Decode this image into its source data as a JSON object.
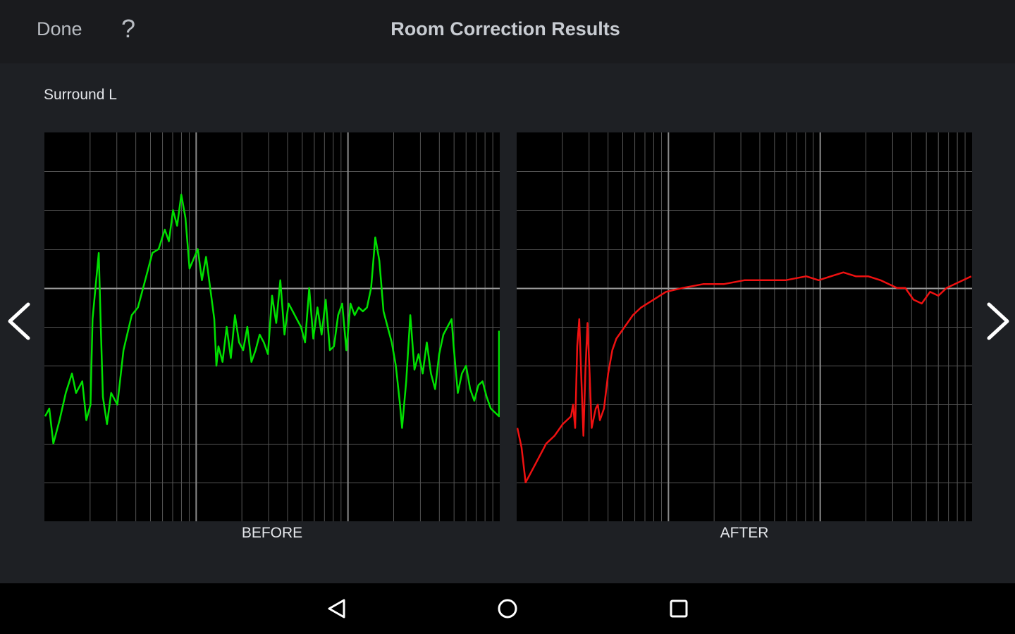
{
  "header": {
    "done_label": "Done",
    "help_label": "?",
    "title": "Room Correction Results"
  },
  "channel": "Surround L",
  "icons": {
    "prev": "chevron-left-icon",
    "next": "chevron-right-icon",
    "back": "back-triangle-icon",
    "home": "home-circle-icon",
    "recent": "recent-apps-square-icon"
  },
  "colors": {
    "before_trace": "#00e000",
    "after_trace": "#ee1111",
    "grid": "#555555",
    "grid_major": "#8a8a8a",
    "reference_line": "#9a9a9a"
  },
  "chart_data": [
    {
      "type": "line",
      "label": "BEFORE",
      "x_scale": "log",
      "grid": true,
      "series": [
        {
          "color": "#00e000",
          "points": [
            [
              0,
              0.27
            ],
            [
              0.01,
              0.29
            ],
            [
              0.02,
              0.2
            ],
            [
              0.035,
              0.26
            ],
            [
              0.05,
              0.33
            ],
            [
              0.065,
              0.38
            ],
            [
              0.075,
              0.33
            ],
            [
              0.09,
              0.36
            ],
            [
              0.1,
              0.26
            ],
            [
              0.11,
              0.3
            ],
            [
              0.115,
              0.52
            ],
            [
              0.13,
              0.69
            ],
            [
              0.135,
              0.5
            ],
            [
              0.14,
              0.32
            ],
            [
              0.15,
              0.25
            ],
            [
              0.16,
              0.33
            ],
            [
              0.175,
              0.3
            ],
            [
              0.19,
              0.44
            ],
            [
              0.21,
              0.53
            ],
            [
              0.225,
              0.55
            ],
            [
              0.24,
              0.61
            ],
            [
              0.26,
              0.69
            ],
            [
              0.275,
              0.7
            ],
            [
              0.29,
              0.75
            ],
            [
              0.3,
              0.72
            ],
            [
              0.31,
              0.8
            ],
            [
              0.32,
              0.76
            ],
            [
              0.33,
              0.84
            ],
            [
              0.34,
              0.78
            ],
            [
              0.35,
              0.65
            ],
            [
              0.37,
              0.7
            ],
            [
              0.38,
              0.62
            ],
            [
              0.39,
              0.68
            ],
            [
              0.4,
              0.6
            ],
            [
              0.41,
              0.52
            ],
            [
              0.415,
              0.4
            ],
            [
              0.42,
              0.45
            ],
            [
              0.43,
              0.41
            ],
            [
              0.44,
              0.5
            ],
            [
              0.45,
              0.42
            ],
            [
              0.46,
              0.53
            ],
            [
              0.47,
              0.46
            ],
            [
              0.48,
              0.44
            ],
            [
              0.49,
              0.5
            ],
            [
              0.5,
              0.41
            ],
            [
              0.51,
              0.44
            ],
            [
              0.52,
              0.48
            ],
            [
              0.53,
              0.46
            ],
            [
              0.54,
              0.43
            ],
            [
              0.55,
              0.58
            ],
            [
              0.56,
              0.51
            ],
            [
              0.57,
              0.62
            ],
            [
              0.58,
              0.48
            ],
            [
              0.59,
              0.56
            ],
            [
              0.6,
              0.54
            ],
            [
              0.61,
              0.52
            ],
            [
              0.62,
              0.5
            ],
            [
              0.63,
              0.46
            ],
            [
              0.64,
              0.6
            ],
            [
              0.65,
              0.47
            ],
            [
              0.66,
              0.55
            ],
            [
              0.67,
              0.48
            ],
            [
              0.68,
              0.57
            ],
            [
              0.69,
              0.44
            ],
            [
              0.7,
              0.45
            ],
            [
              0.71,
              0.53
            ],
            [
              0.72,
              0.56
            ],
            [
              0.73,
              0.44
            ],
            [
              0.74,
              0.56
            ],
            [
              0.75,
              0.53
            ],
            [
              0.76,
              0.55
            ],
            [
              0.77,
              0.54
            ],
            [
              0.78,
              0.55
            ],
            [
              0.79,
              0.6
            ],
            [
              0.8,
              0.73
            ],
            [
              0.81,
              0.67
            ],
            [
              0.82,
              0.54
            ],
            [
              0.83,
              0.5
            ],
            [
              0.84,
              0.46
            ],
            [
              0.85,
              0.4
            ],
            [
              0.86,
              0.3
            ],
            [
              0.865,
              0.24
            ],
            [
              0.875,
              0.36
            ],
            [
              0.885,
              0.53
            ],
            [
              0.895,
              0.39
            ],
            [
              0.905,
              0.43
            ],
            [
              0.915,
              0.38
            ],
            [
              0.925,
              0.46
            ],
            [
              0.935,
              0.38
            ],
            [
              0.945,
              0.34
            ],
            [
              0.955,
              0.43
            ],
            [
              0.965,
              0.48
            ],
            [
              0.975,
              0.5
            ],
            [
              0.985,
              0.52
            ],
            [
              0.99,
              0.45
            ],
            [
              1,
              0.33
            ],
            [
              1.01,
              0.38
            ],
            [
              1.02,
              0.4
            ],
            [
              1.03,
              0.34
            ],
            [
              1.04,
              0.31
            ],
            [
              1.05,
              0.35
            ],
            [
              1.06,
              0.36
            ],
            [
              1.07,
              0.32
            ],
            [
              1.08,
              0.29
            ],
            [
              1.09,
              0.28
            ],
            [
              1.1,
              0.27
            ],
            [
              1.1,
              0.49
            ]
          ]
        }
      ]
    },
    {
      "type": "line",
      "label": "AFTER",
      "x_scale": "log",
      "grid": true,
      "series": [
        {
          "color": "#ee1111",
          "points": [
            [
              0,
              0.24
            ],
            [
              0.01,
              0.19
            ],
            [
              0.02,
              0.1
            ],
            [
              0.03,
              0.12
            ],
            [
              0.05,
              0.16
            ],
            [
              0.07,
              0.2
            ],
            [
              0.09,
              0.22
            ],
            [
              0.11,
              0.25
            ],
            [
              0.13,
              0.27
            ],
            [
              0.135,
              0.3
            ],
            [
              0.14,
              0.24
            ],
            [
              0.145,
              0.45
            ],
            [
              0.15,
              0.52
            ],
            [
              0.155,
              0.37
            ],
            [
              0.16,
              0.22
            ],
            [
              0.165,
              0.39
            ],
            [
              0.17,
              0.51
            ],
            [
              0.175,
              0.38
            ],
            [
              0.18,
              0.24
            ],
            [
              0.19,
              0.29
            ],
            [
              0.195,
              0.3
            ],
            [
              0.2,
              0.26
            ],
            [
              0.21,
              0.29
            ],
            [
              0.22,
              0.38
            ],
            [
              0.23,
              0.44
            ],
            [
              0.24,
              0.47
            ],
            [
              0.26,
              0.5
            ],
            [
              0.28,
              0.53
            ],
            [
              0.3,
              0.55
            ],
            [
              0.33,
              0.57
            ],
            [
              0.36,
              0.59
            ],
            [
              0.4,
              0.6
            ],
            [
              0.45,
              0.61
            ],
            [
              0.5,
              0.61
            ],
            [
              0.55,
              0.62
            ],
            [
              0.6,
              0.62
            ],
            [
              0.65,
              0.62
            ],
            [
              0.7,
              0.63
            ],
            [
              0.73,
              0.62
            ],
            [
              0.76,
              0.63
            ],
            [
              0.79,
              0.64
            ],
            [
              0.82,
              0.63
            ],
            [
              0.85,
              0.63
            ],
            [
              0.88,
              0.62
            ],
            [
              0.9,
              0.61
            ],
            [
              0.92,
              0.6
            ],
            [
              0.94,
              0.6
            ],
            [
              0.96,
              0.57
            ],
            [
              0.98,
              0.56
            ],
            [
              1.0,
              0.59
            ],
            [
              1.02,
              0.58
            ],
            [
              1.04,
              0.6
            ],
            [
              1.06,
              0.61
            ],
            [
              1.08,
              0.62
            ],
            [
              1.1,
              0.63
            ]
          ]
        }
      ]
    }
  ],
  "labels": {
    "before": "BEFORE",
    "after": "AFTER"
  }
}
